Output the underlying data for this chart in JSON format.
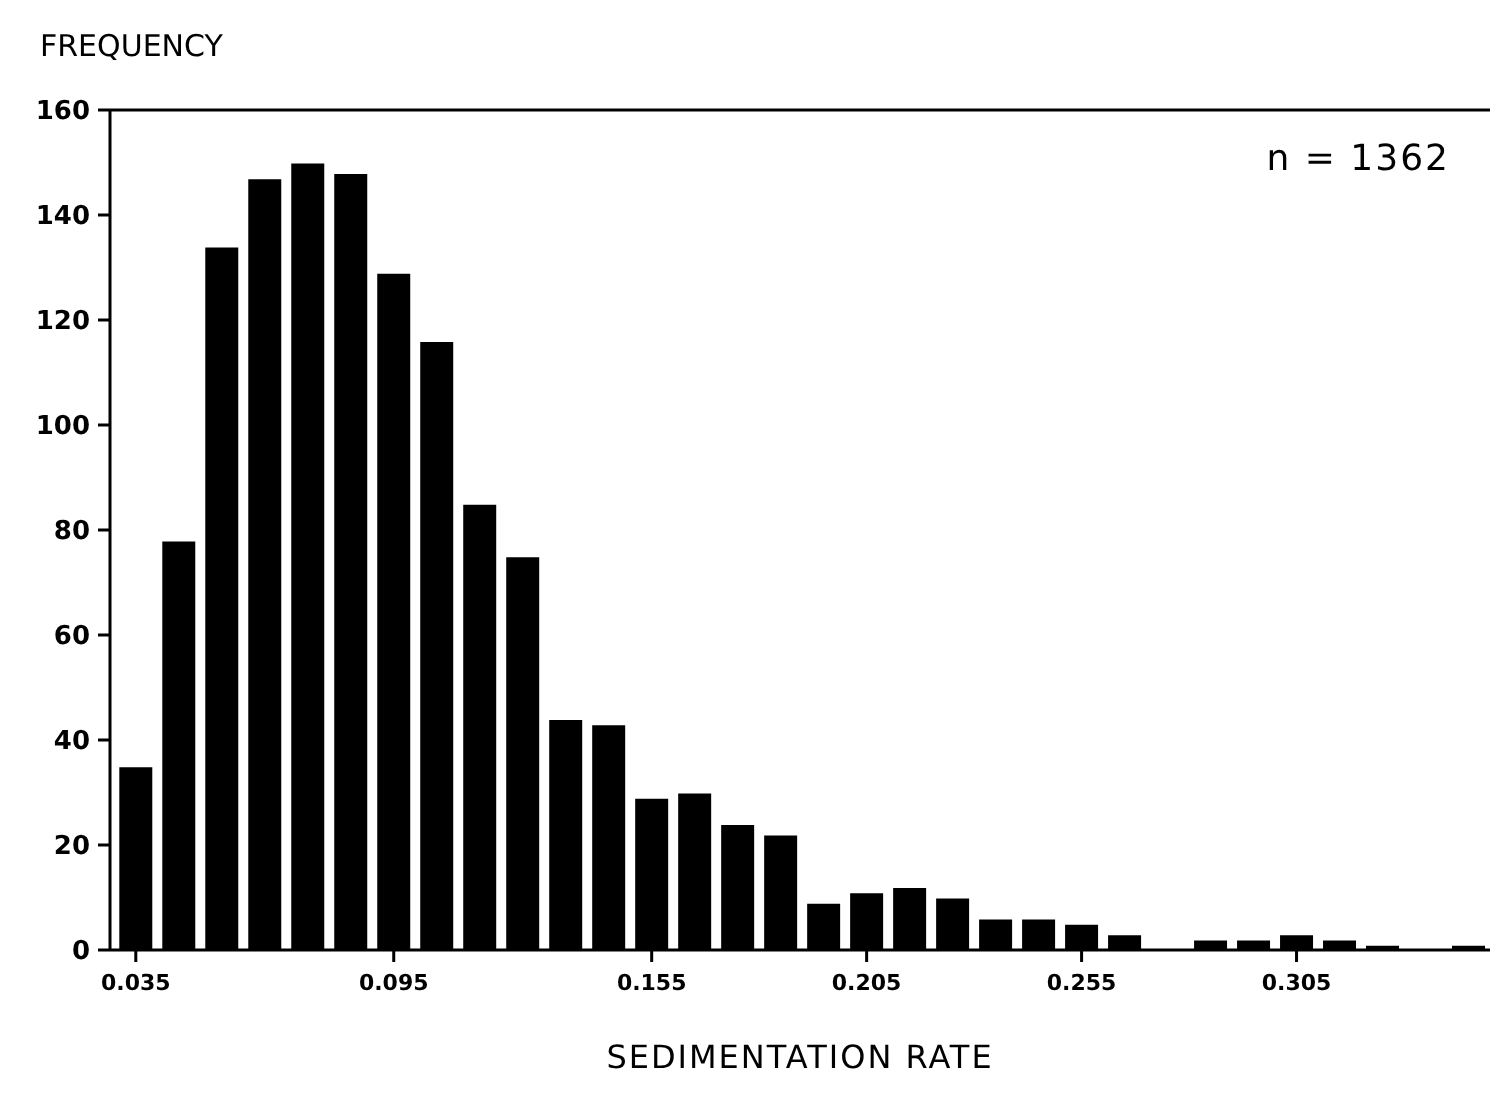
{
  "chart_data": {
    "type": "histogram",
    "xlabel": "SEDIMENTATION RATE",
    "ylabel": "FREQUENCY",
    "annotations": [
      "n = 1362"
    ],
    "bins": [
      0.03,
      0.04,
      0.05,
      0.06,
      0.07,
      0.08,
      0.09,
      0.1,
      0.11,
      0.12,
      0.13,
      0.14,
      0.15,
      0.16,
      0.17,
      0.18,
      0.19,
      0.2,
      0.21,
      0.22,
      0.23,
      0.24,
      0.25,
      0.26,
      0.27,
      0.28,
      0.29,
      0.3,
      0.31,
      0.32,
      0.33,
      0.34,
      0.35
    ],
    "values": [
      35,
      78,
      134,
      147,
      150,
      148,
      129,
      116,
      85,
      75,
      44,
      43,
      29,
      30,
      24,
      22,
      9,
      11,
      12,
      10,
      6,
      6,
      5,
      3,
      0,
      2,
      2,
      3,
      2,
      1,
      0,
      1
    ],
    "color": "#000000",
    "xlim": [
      0.029,
      0.35
    ],
    "ylim": [
      0,
      160
    ],
    "xticks": [
      0.035,
      0.095,
      0.155,
      0.205,
      0.255,
      0.305
    ],
    "yticks": [
      0,
      20,
      40,
      60,
      80,
      100,
      120,
      140,
      160
    ]
  }
}
